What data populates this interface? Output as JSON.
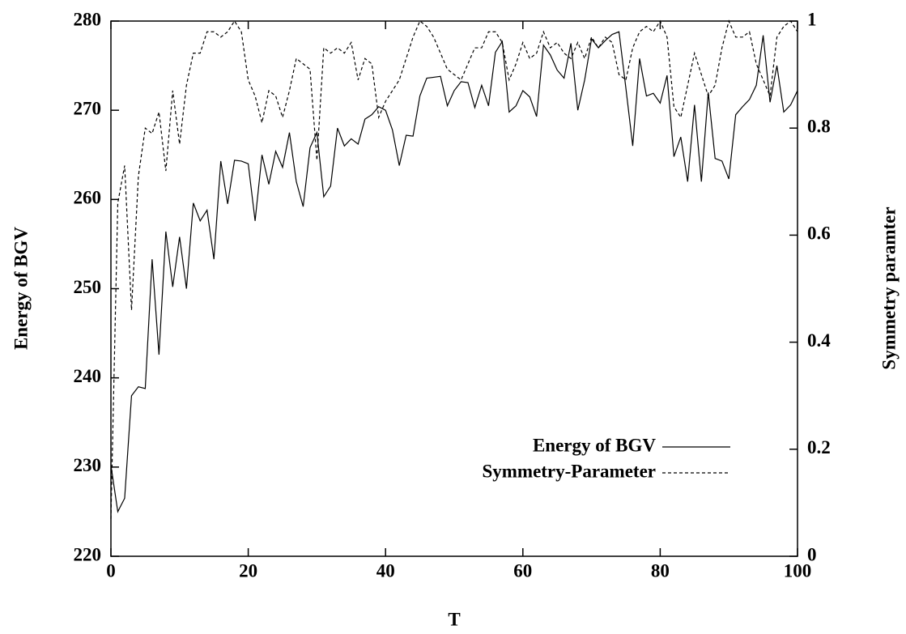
{
  "chart_data": {
    "type": "line",
    "xlabel": "T",
    "ylabel": "Energy of BGV",
    "y2label": "Symmetry paramter",
    "xlim": [
      0,
      100
    ],
    "xticks": [
      0,
      20,
      40,
      60,
      80,
      100
    ],
    "ylim": [
      220,
      280
    ],
    "yticks": [
      220,
      230,
      240,
      250,
      260,
      270,
      280
    ],
    "y2lim": [
      0,
      1
    ],
    "y2ticks": [
      0,
      0.2,
      0.4,
      0.6,
      0.8,
      1
    ],
    "legend": "bottom right",
    "grid": false,
    "x": [
      0,
      1,
      2,
      3,
      4,
      5,
      6,
      7,
      8,
      9,
      10,
      11,
      12,
      13,
      14,
      15,
      16,
      17,
      18,
      19,
      20,
      21,
      22,
      23,
      24,
      25,
      26,
      27,
      28,
      29,
      30,
      31,
      32,
      33,
      34,
      35,
      36,
      37,
      38,
      39,
      40,
      41,
      42,
      43,
      44,
      45,
      46,
      47,
      48,
      49,
      50,
      51,
      52,
      53,
      54,
      55,
      56,
      57,
      58,
      59,
      60,
      61,
      62,
      63,
      64,
      65,
      66,
      67,
      68,
      69,
      70,
      71,
      72,
      73,
      74,
      75,
      76,
      77,
      78,
      79,
      80,
      81,
      82,
      83,
      84,
      85,
      86,
      87,
      88,
      89,
      90,
      91,
      92,
      93,
      94,
      95,
      96,
      97,
      98,
      99,
      100
    ],
    "series": [
      {
        "name": "Energy of BGV",
        "color": "#000000",
        "line_style": "solid",
        "values": [
          230.2,
          225,
          226.5,
          238,
          239,
          238.8,
          253.3,
          242.6,
          256.4,
          250.2,
          255.8,
          250,
          259.6,
          257.6,
          258.8,
          253.3,
          264.3,
          259.5,
          264.4,
          264.3,
          264,
          257.6,
          265,
          261.7,
          265.4,
          263.6,
          267.5,
          262,
          259.2,
          265.8,
          267.5,
          260.3,
          261.5,
          268,
          266,
          266.8,
          266.2,
          269,
          269.5,
          270.4,
          270,
          267.8,
          263.8,
          267.2,
          267.1,
          271.6,
          273.6,
          273.7,
          273.8,
          270.5,
          272.2,
          273.2,
          273.1,
          270.3,
          272.8,
          270.5,
          276.5,
          277.7,
          269.8,
          270.5,
          272.2,
          271.5,
          269.3,
          277.3,
          276.2,
          274.5,
          273.6,
          277.5,
          270,
          273.4,
          278,
          277,
          277.8,
          278.5,
          278.8,
          272.5,
          266,
          275.8,
          271.6,
          271.9,
          270.8,
          273.9,
          264.8,
          267,
          262,
          270.6,
          262,
          272,
          264.6,
          264.3,
          262.3,
          269.5,
          270.4,
          271.2,
          272.8,
          278.4,
          270.9,
          275,
          269.8,
          270.6,
          272.2
        ]
      },
      {
        "name": "Symmetry-Parameter",
        "color": "#000000",
        "line_style": "dashed",
        "axis": "y2",
        "values": [
          0.07,
          0.66,
          0.73,
          0.46,
          0.71,
          0.8,
          0.79,
          0.83,
          0.72,
          0.87,
          0.77,
          0.88,
          0.94,
          0.94,
          0.98,
          0.98,
          0.97,
          0.98,
          1.0,
          0.98,
          0.89,
          0.86,
          0.81,
          0.87,
          0.86,
          0.82,
          0.87,
          0.93,
          0.92,
          0.91,
          0.74,
          0.95,
          0.94,
          0.95,
          0.94,
          0.96,
          0.89,
          0.93,
          0.92,
          0.82,
          0.85,
          0.87,
          0.89,
          0.93,
          0.97,
          1.0,
          0.99,
          0.97,
          0.94,
          0.91,
          0.9,
          0.89,
          0.92,
          0.95,
          0.95,
          0.98,
          0.98,
          0.96,
          0.89,
          0.92,
          0.96,
          0.93,
          0.94,
          0.98,
          0.95,
          0.96,
          0.94,
          0.93,
          0.96,
          0.93,
          0.97,
          0.95,
          0.97,
          0.96,
          0.9,
          0.89,
          0.95,
          0.98,
          0.99,
          0.98,
          1.0,
          0.97,
          0.84,
          0.82,
          0.88,
          0.94,
          0.9,
          0.86,
          0.88,
          0.95,
          1.0,
          0.97,
          0.97,
          0.98,
          0.92,
          0.89,
          0.86,
          0.97,
          0.99,
          1.0,
          0.98
        ]
      }
    ]
  }
}
